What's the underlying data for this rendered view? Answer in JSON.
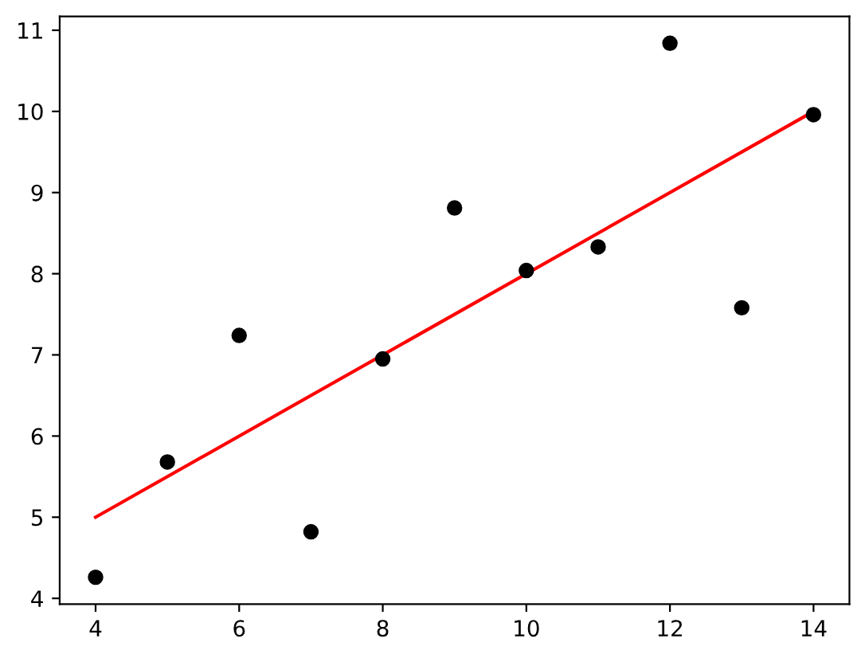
{
  "chart_data": {
    "type": "scatter",
    "series": [
      {
        "color": "#000000",
        "marker": "circle",
        "x": [
          10,
          8,
          13,
          9,
          11,
          14,
          6,
          4,
          12,
          7,
          5
        ],
        "values": [
          8.04,
          6.95,
          7.58,
          8.81,
          8.33,
          9.96,
          7.24,
          4.26,
          10.84,
          4.82,
          5.68
        ]
      },
      {
        "type": "line",
        "color": "#ff0000",
        "line_style": "solid",
        "x": [
          4,
          14
        ],
        "values": [
          5,
          10
        ]
      }
    ],
    "xlim": [
      3.5,
      14.5
    ],
    "xticks": [
      4,
      6,
      8,
      10,
      12,
      14
    ],
    "ylim": [
      3.93,
      11.17
    ],
    "yticks": [
      4,
      5,
      6,
      7,
      8,
      9,
      10,
      11
    ],
    "grid": false
  }
}
